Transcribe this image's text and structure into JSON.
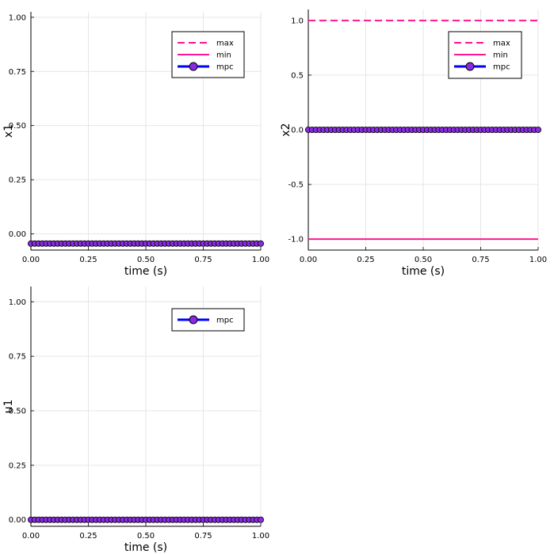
{
  "chart_data": [
    {
      "type": "line",
      "xlabel": "time (s)",
      "ylabel": "x1",
      "xlim": [
        0,
        1
      ],
      "ylim": [
        -0.075,
        1.025
      ],
      "x_ticks": [
        "0.00",
        "0.25",
        "0.50",
        "0.75",
        "1.00"
      ],
      "y_ticks": [
        "0.00",
        "0.25",
        "0.50",
        "0.75",
        "1.00"
      ],
      "grid": true,
      "legend_position": "top-right",
      "legend": [
        "max",
        "min",
        "mpc"
      ],
      "series": [
        {
          "name": "max",
          "style": "dashed",
          "color": "#ff1493",
          "x": [],
          "y": []
        },
        {
          "name": "min",
          "style": "solid",
          "color": "#ff1493",
          "x": [],
          "y": []
        },
        {
          "name": "mpc",
          "style": "line-markers",
          "color": "#0000ff",
          "marker_color": "#8a2be2",
          "x_start": 0,
          "x_end": 1,
          "n_points": 61,
          "y_constant": -0.045
        }
      ]
    },
    {
      "type": "line",
      "xlabel": "time (s)",
      "ylabel": "x2",
      "xlim": [
        0,
        1
      ],
      "ylim": [
        -1.1,
        1.1
      ],
      "x_ticks": [
        "0.00",
        "0.25",
        "0.50",
        "0.75",
        "1.00"
      ],
      "y_ticks": [
        "-1.0",
        "-0.5",
        "0.0",
        "0.5",
        "1.0"
      ],
      "grid": true,
      "legend_position": "top-right",
      "legend": [
        "max",
        "min",
        "mpc"
      ],
      "series": [
        {
          "name": "max",
          "style": "dashed",
          "color": "#ff1493",
          "x": [
            0,
            1
          ],
          "y": [
            1.0,
            1.0
          ]
        },
        {
          "name": "min",
          "style": "solid",
          "color": "#ff1493",
          "x": [
            0,
            1
          ],
          "y": [
            -1.0,
            -1.0
          ]
        },
        {
          "name": "mpc",
          "style": "line-markers",
          "color": "#0000ff",
          "marker_color": "#8a2be2",
          "x_start": 0,
          "x_end": 1,
          "n_points": 61,
          "y_constant": 0.0
        }
      ]
    },
    {
      "type": "line",
      "xlabel": "time (s)",
      "ylabel": "u1",
      "xlim": [
        0,
        1
      ],
      "ylim": [
        -0.03,
        1.07
      ],
      "x_ticks": [
        "0.00",
        "0.25",
        "0.50",
        "0.75",
        "1.00"
      ],
      "y_ticks": [
        "0.00",
        "0.25",
        "0.50",
        "0.75",
        "1.00"
      ],
      "grid": true,
      "legend_position": "top-right",
      "legend": [
        "mpc"
      ],
      "series": [
        {
          "name": "mpc",
          "style": "line-markers",
          "color": "#0000ff",
          "marker_color": "#8a2be2",
          "x_start": 0,
          "x_end": 1,
          "n_points": 61,
          "y_constant": 0.0
        }
      ]
    }
  ]
}
